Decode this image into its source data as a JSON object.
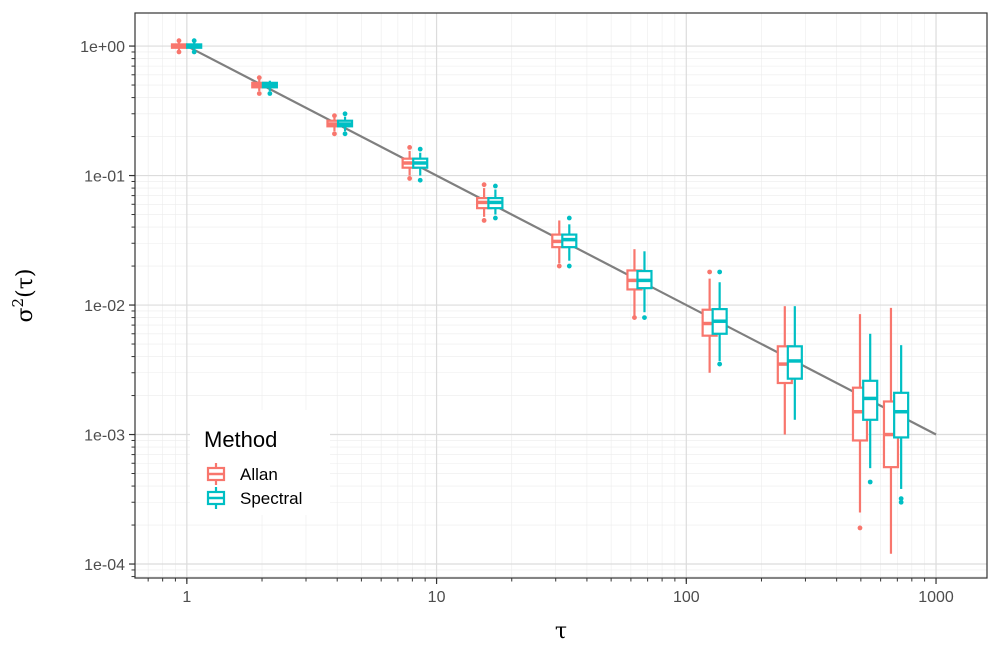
{
  "chart_data": {
    "type": "boxplot",
    "xlabel": "τ",
    "ylabel_base": "σ",
    "ylabel_sup": "2",
    "ylabel_arg": "(τ)",
    "x_scale": "log10",
    "y_scale": "log10",
    "xlim": [
      0.62,
      1600
    ],
    "ylim": [
      7.8e-05,
      1.8
    ],
    "x_ticks": [
      {
        "value": 1,
        "label": "1"
      },
      {
        "value": 10,
        "label": "10"
      },
      {
        "value": 100,
        "label": "100"
      },
      {
        "value": 1000,
        "label": "1000"
      }
    ],
    "y_ticks": [
      {
        "value": 1,
        "label": "1e+00"
      },
      {
        "value": 0.1,
        "label": "1e-01"
      },
      {
        "value": 0.01,
        "label": "1e-02"
      },
      {
        "value": 0.001,
        "label": "1e-03"
      },
      {
        "value": 0.0001,
        "label": "1e-04"
      }
    ],
    "grid": true,
    "reference_line": {
      "x": [
        1,
        1000
      ],
      "y": [
        1,
        0.001
      ],
      "color": "#7f7f7f"
    },
    "legend": {
      "title": "Method",
      "position": "bottom-left"
    },
    "series": [
      {
        "name": "Allan",
        "color": "#f8766d",
        "boxes": [
          {
            "x": 0.93,
            "whisker_low": 0.93,
            "q1": 0.97,
            "median": 1.0,
            "q3": 1.03,
            "whisker_high": 1.07,
            "outliers": [
              0.9,
              1.1
            ]
          },
          {
            "x": 1.95,
            "whisker_low": 0.45,
            "q1": 0.48,
            "median": 0.5,
            "q3": 0.52,
            "whisker_high": 0.55,
            "outliers": [
              0.43,
              0.57
            ]
          },
          {
            "x": 3.9,
            "whisker_low": 0.22,
            "q1": 0.24,
            "median": 0.25,
            "q3": 0.265,
            "whisker_high": 0.28,
            "outliers": [
              0.21,
              0.29
            ]
          },
          {
            "x": 7.8,
            "whisker_low": 0.1,
            "q1": 0.115,
            "median": 0.125,
            "q3": 0.135,
            "whisker_high": 0.155,
            "outliers": [
              0.095,
              0.165
            ]
          },
          {
            "x": 15.5,
            "whisker_low": 0.048,
            "q1": 0.056,
            "median": 0.062,
            "q3": 0.067,
            "whisker_high": 0.08,
            "outliers": [
              0.045,
              0.085
            ]
          },
          {
            "x": 31,
            "whisker_low": 0.021,
            "q1": 0.028,
            "median": 0.031,
            "q3": 0.035,
            "whisker_high": 0.045,
            "outliers": [
              0.02
            ]
          },
          {
            "x": 62,
            "whisker_low": 0.0082,
            "q1": 0.0132,
            "median": 0.0155,
            "q3": 0.0185,
            "whisker_high": 0.027,
            "outliers": [
              0.008
            ]
          },
          {
            "x": 124,
            "whisker_low": 0.003,
            "q1": 0.0058,
            "median": 0.0072,
            "q3": 0.0092,
            "whisker_high": 0.016,
            "outliers": [
              0.018
            ]
          },
          {
            "x": 248,
            "whisker_low": 0.001,
            "q1": 0.0025,
            "median": 0.0035,
            "q3": 0.0048,
            "whisker_high": 0.0098,
            "outliers": []
          },
          {
            "x": 496,
            "whisker_low": 0.00025,
            "q1": 0.0009,
            "median": 0.0015,
            "q3": 0.0023,
            "whisker_high": 0.0085,
            "outliers": [
              0.00019
            ]
          },
          {
            "x": 660,
            "whisker_low": 0.00012,
            "q1": 0.00056,
            "median": 0.001,
            "q3": 0.0018,
            "whisker_high": 0.0095,
            "outliers": []
          }
        ]
      },
      {
        "name": "Spectral",
        "color": "#00bfc4",
        "boxes": [
          {
            "x": 1.07,
            "whisker_low": 0.93,
            "q1": 0.97,
            "median": 1.0,
            "q3": 1.03,
            "whisker_high": 1.08,
            "outliers": [
              0.9,
              1.1
            ]
          },
          {
            "x": 2.15,
            "whisker_low": 0.45,
            "q1": 0.48,
            "median": 0.5,
            "q3": 0.52,
            "whisker_high": 0.54,
            "outliers": [
              0.43
            ]
          },
          {
            "x": 4.3,
            "whisker_low": 0.22,
            "q1": 0.24,
            "median": 0.25,
            "q3": 0.265,
            "whisker_high": 0.285,
            "outliers": [
              0.21,
              0.3
            ]
          },
          {
            "x": 8.6,
            "whisker_low": 0.1,
            "q1": 0.115,
            "median": 0.125,
            "q3": 0.135,
            "whisker_high": 0.15,
            "outliers": [
              0.092,
              0.16
            ]
          },
          {
            "x": 17.2,
            "whisker_low": 0.05,
            "q1": 0.056,
            "median": 0.062,
            "q3": 0.067,
            "whisker_high": 0.078,
            "outliers": [
              0.047,
              0.083
            ]
          },
          {
            "x": 34,
            "whisker_low": 0.022,
            "q1": 0.028,
            "median": 0.032,
            "q3": 0.035,
            "whisker_high": 0.042,
            "outliers": [
              0.02,
              0.047
            ]
          },
          {
            "x": 68,
            "whisker_low": 0.0088,
            "q1": 0.0135,
            "median": 0.0155,
            "q3": 0.0183,
            "whisker_high": 0.026,
            "outliers": [
              0.008
            ]
          },
          {
            "x": 136,
            "whisker_low": 0.0037,
            "q1": 0.006,
            "median": 0.0075,
            "q3": 0.0093,
            "whisker_high": 0.015,
            "outliers": [
              0.0035,
              0.018
            ]
          },
          {
            "x": 272,
            "whisker_low": 0.0013,
            "q1": 0.0027,
            "median": 0.0037,
            "q3": 0.0048,
            "whisker_high": 0.0098,
            "outliers": []
          },
          {
            "x": 545,
            "whisker_low": 0.00055,
            "q1": 0.0013,
            "median": 0.0019,
            "q3": 0.0026,
            "whisker_high": 0.006,
            "outliers": [
              0.00043
            ]
          },
          {
            "x": 725,
            "whisker_low": 0.00038,
            "q1": 0.00095,
            "median": 0.0015,
            "q3": 0.0021,
            "whisker_high": 0.0049,
            "outliers": [
              0.00032,
              0.0003
            ]
          }
        ]
      }
    ]
  }
}
